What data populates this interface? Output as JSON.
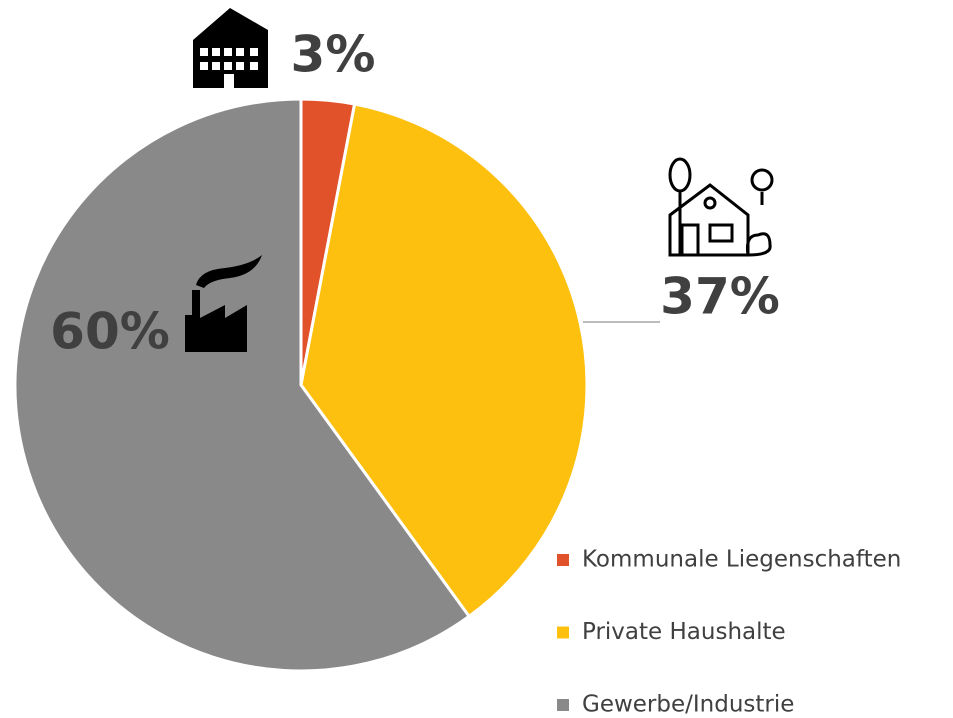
{
  "chart_data": {
    "type": "pie",
    "categories": [
      "Kommunale Liegenschaften",
      "Private Haushalte",
      "Gewerbe/Industrie"
    ],
    "values": [
      3,
      37,
      60
    ],
    "value_labels": [
      "3%",
      "37%",
      "60%"
    ],
    "colors": [
      "#e2522a",
      "#fdc00f",
      "#898989"
    ],
    "legend": "bottom-right"
  }
}
